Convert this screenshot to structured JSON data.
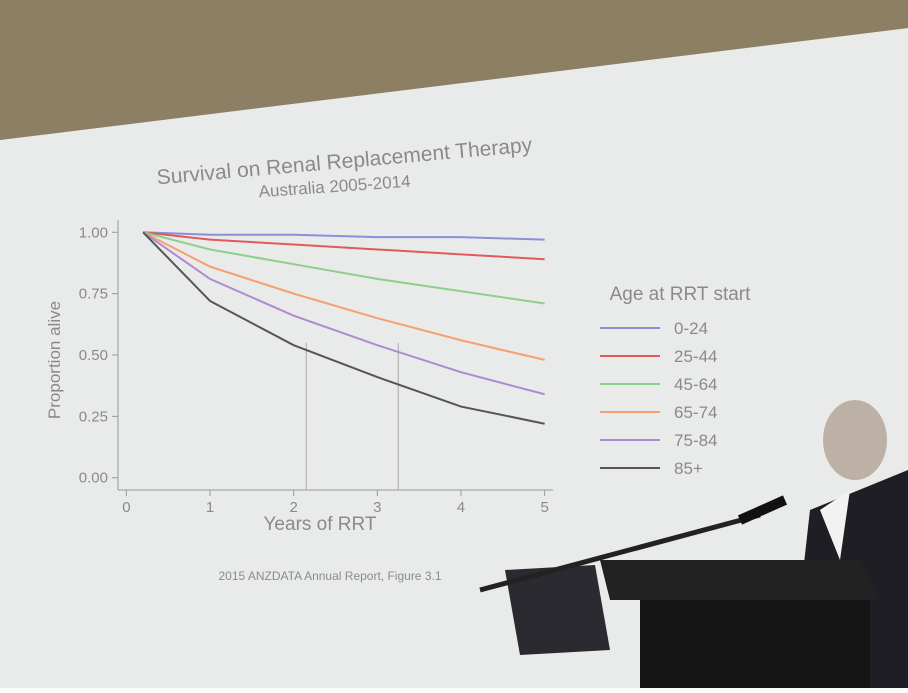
{
  "chart_data": {
    "type": "line",
    "title": "Survival on Renal Replacement Therapy",
    "subtitle": "Australia 2005-2014",
    "x_label": "Years of RRT",
    "y_label": "Proportion alive",
    "legend_title": "Age at RRT start",
    "source": "2015 ANZDATA Annual Report, Figure 3.1",
    "x": [
      0.2,
      1,
      2,
      3,
      4,
      5
    ],
    "series": [
      {
        "name": "0-24",
        "color": "#8a8fd8",
        "values": [
          1.0,
          0.99,
          0.99,
          0.98,
          0.98,
          0.97
        ]
      },
      {
        "name": "25-44",
        "color": "#e05a5a",
        "values": [
          1.0,
          0.97,
          0.95,
          0.93,
          0.91,
          0.89
        ]
      },
      {
        "name": "45-64",
        "color": "#8ccf8a",
        "values": [
          1.0,
          0.93,
          0.87,
          0.81,
          0.76,
          0.71
        ]
      },
      {
        "name": "65-74",
        "color": "#f5a070",
        "values": [
          1.0,
          0.86,
          0.75,
          0.65,
          0.56,
          0.48
        ]
      },
      {
        "name": "75-84",
        "color": "#b08ad0",
        "values": [
          1.0,
          0.81,
          0.66,
          0.54,
          0.43,
          0.34
        ]
      },
      {
        "name": "85+",
        "color": "#555555",
        "values": [
          1.0,
          0.72,
          0.54,
          0.41,
          0.29,
          0.22
        ]
      }
    ],
    "reference_lines_x": [
      2.15,
      3.25
    ],
    "xlim": [
      -0.1,
      5.1
    ],
    "ylim": [
      -0.05,
      1.05
    ],
    "xticks": [
      0,
      1,
      2,
      3,
      4,
      5
    ],
    "yticks": [
      {
        "value": 1.0,
        "label": "1.00"
      },
      {
        "value": 0.75,
        "label": "0.75"
      },
      {
        "value": 0.5,
        "label": "0.50"
      },
      {
        "value": 0.25,
        "label": "0.25"
      },
      {
        "value": 0.0,
        "label": "0.00"
      }
    ],
    "grid": false
  }
}
